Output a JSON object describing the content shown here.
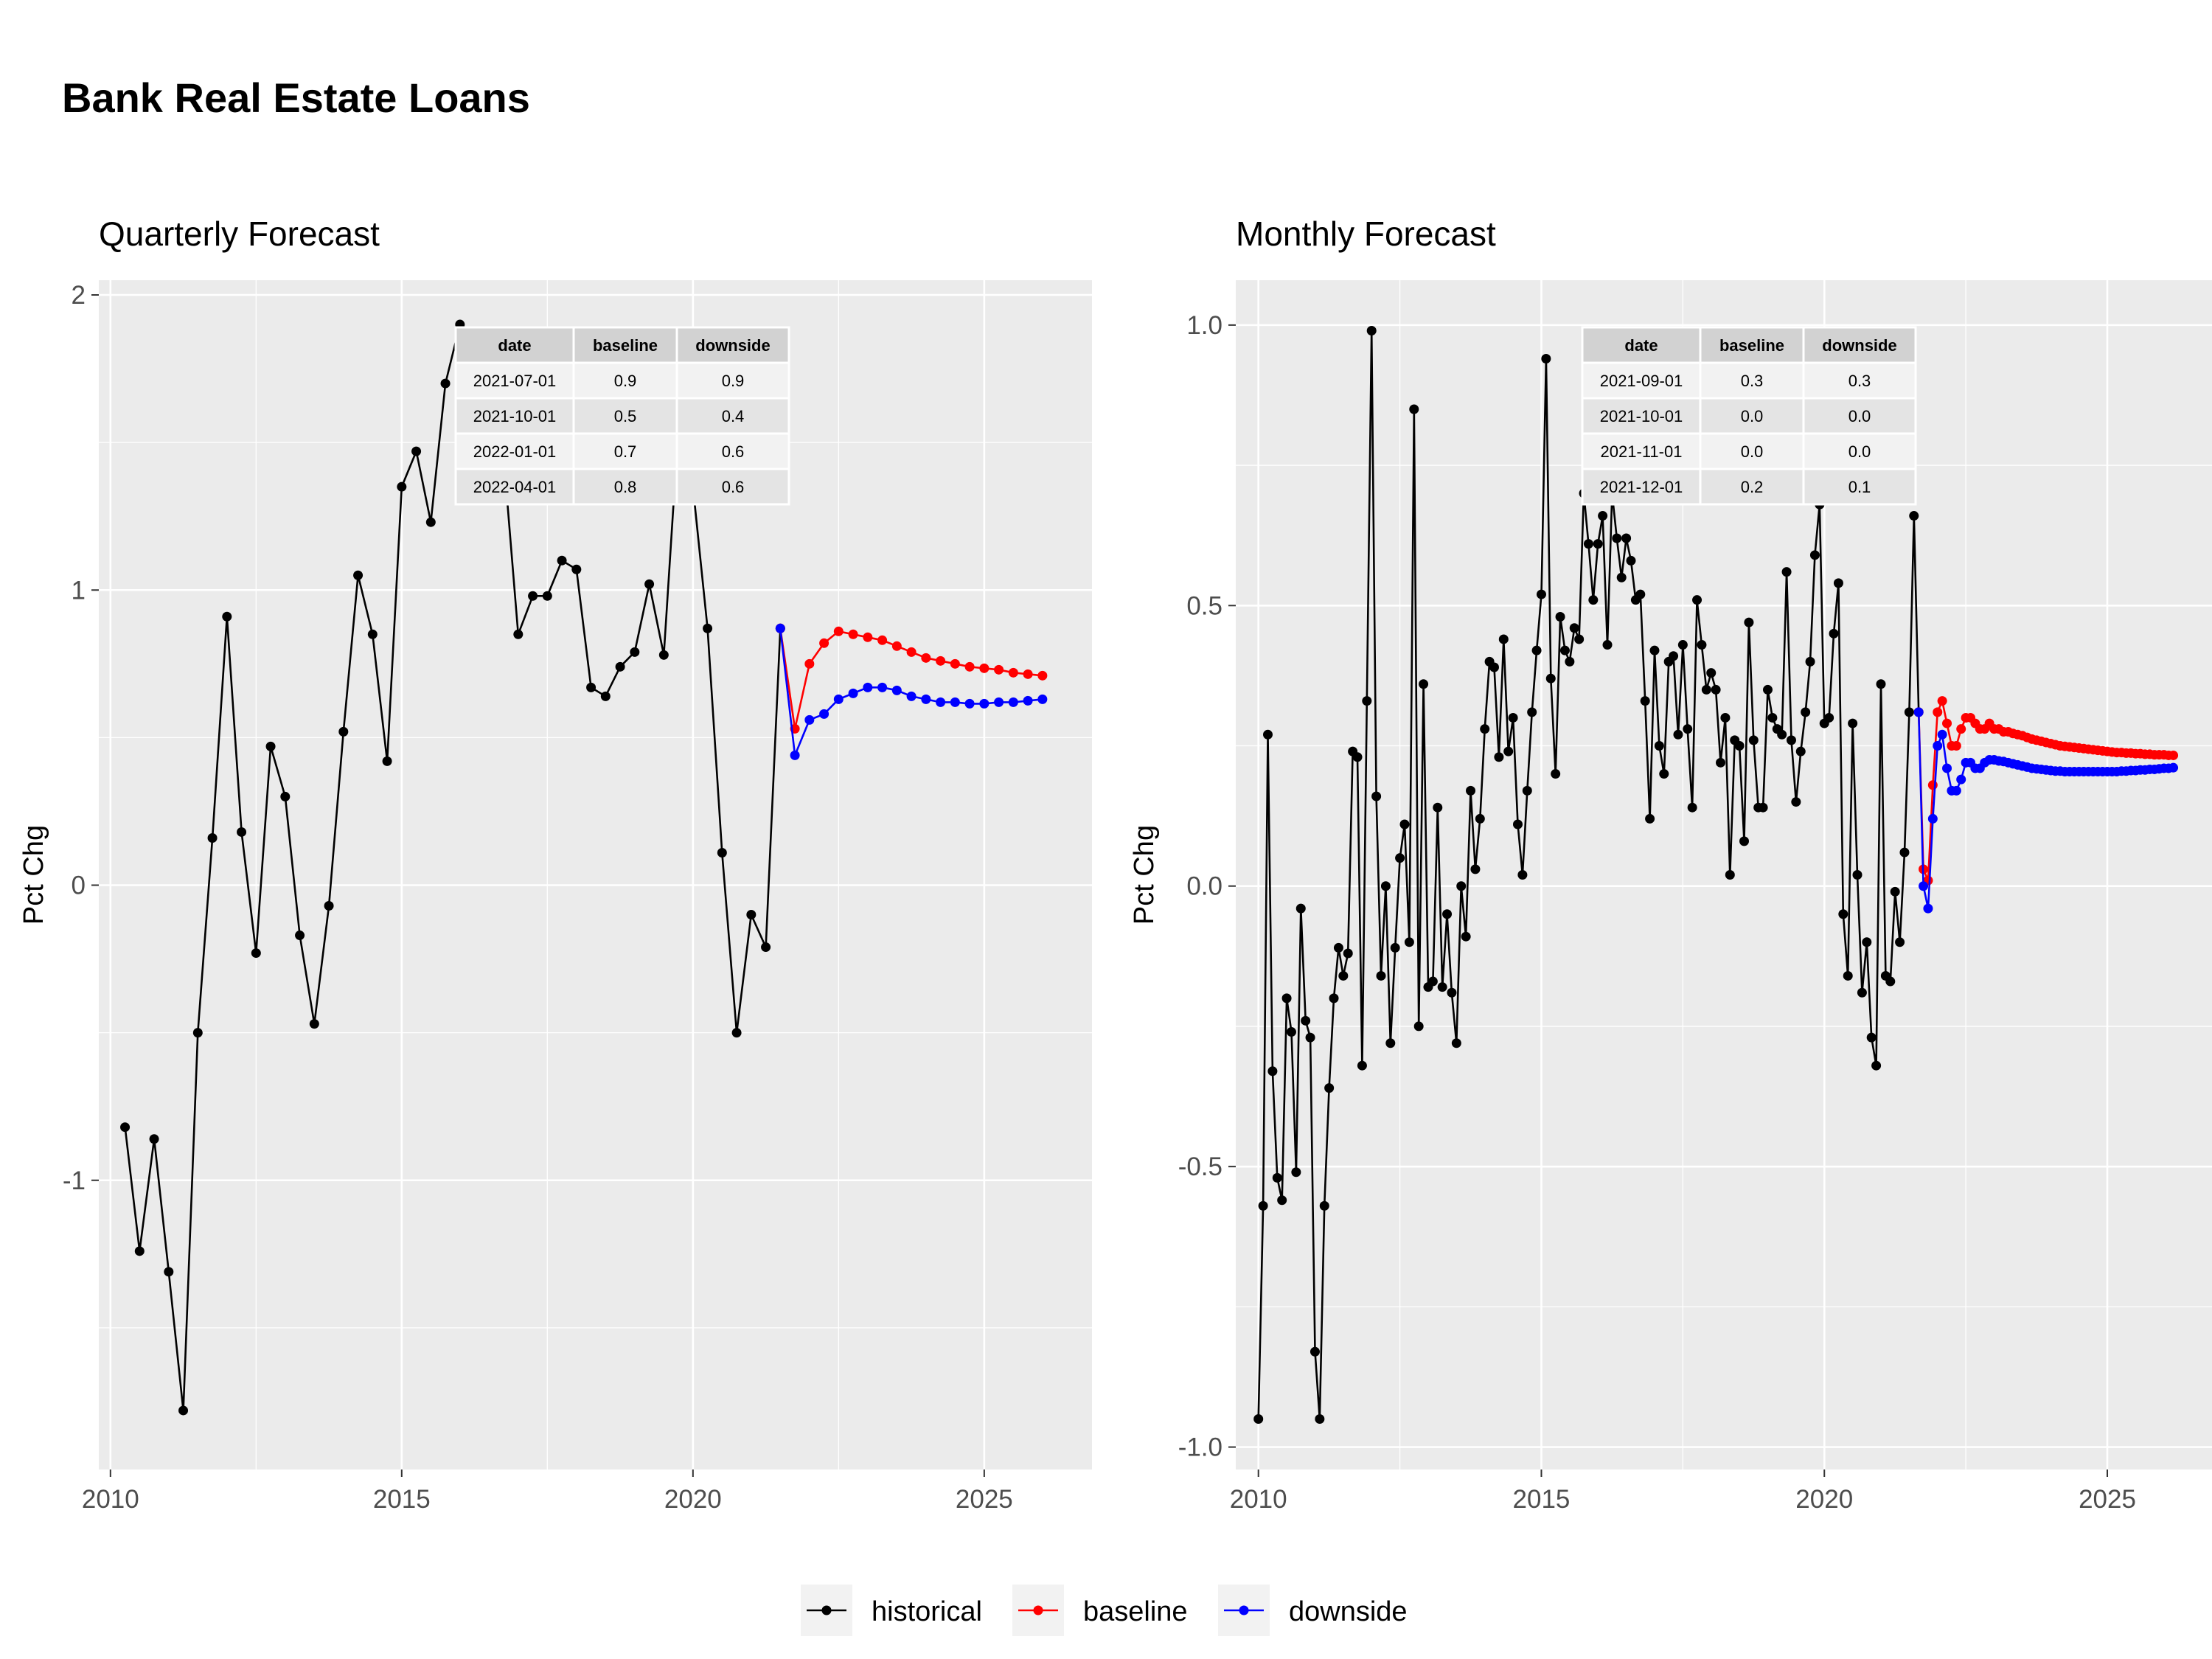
{
  "page_title": "Bank Real Estate Loans",
  "legend": [
    {
      "label": "historical",
      "color": "#000000"
    },
    {
      "label": "baseline",
      "color": "#ff0000"
    },
    {
      "label": "downside",
      "color": "#0000ff"
    }
  ],
  "chart_data": [
    {
      "type": "line",
      "title": "Quarterly Forecast",
      "xlabel": "",
      "ylabel": "Pct Chg",
      "xlim": [
        2009.8,
        2026.85
      ],
      "ylim": [
        -1.98,
        2.05
      ],
      "x_ticks": [
        2010,
        2015,
        2020,
        2025
      ],
      "x_tick_labels": [
        "2010",
        "2015",
        "2020",
        "2025"
      ],
      "y_ticks": [
        -1,
        0,
        1,
        2
      ],
      "y_tick_labels": [
        "-1",
        "0",
        "1",
        "2"
      ],
      "grid": true,
      "legend_position": "bottom",
      "series": [
        {
          "name": "historical",
          "color": "#000000",
          "x": [
            2010.25,
            2010.5,
            2010.75,
            2011.0,
            2011.25,
            2011.5,
            2011.75,
            2012.0,
            2012.25,
            2012.5,
            2012.75,
            2013.0,
            2013.25,
            2013.5,
            2013.75,
            2014.0,
            2014.25,
            2014.5,
            2014.75,
            2015.0,
            2015.25,
            2015.5,
            2015.75,
            2016.0,
            2016.25,
            2016.5,
            2016.75,
            2017.0,
            2017.25,
            2017.5,
            2017.75,
            2018.0,
            2018.25,
            2018.5,
            2018.75,
            2019.0,
            2019.25,
            2019.5,
            2019.75,
            2020.0,
            2020.25,
            2020.5,
            2020.75,
            2021.0,
            2021.25,
            2021.5
          ],
          "y": [
            -0.82,
            -1.24,
            -0.86,
            -1.31,
            -1.78,
            -0.5,
            0.16,
            0.91,
            0.18,
            -0.23,
            0.47,
            0.3,
            -0.17,
            -0.47,
            -0.07,
            0.52,
            1.05,
            0.85,
            0.42,
            1.35,
            1.47,
            1.23,
            1.7,
            1.9,
            1.75,
            1.68,
            1.45,
            0.85,
            0.98,
            0.98,
            1.1,
            1.07,
            0.67,
            0.64,
            0.74,
            0.79,
            1.02,
            0.78,
            1.55,
            1.35,
            0.87,
            0.11,
            -0.5,
            -0.1,
            -0.21,
            0.87
          ]
        },
        {
          "name": "baseline",
          "color": "#ff0000",
          "x": [
            2021.5,
            2021.75,
            2022.0,
            2022.25,
            2022.5,
            2022.75,
            2023.0,
            2023.25,
            2023.5,
            2023.75,
            2024.0,
            2024.25,
            2024.5,
            2024.75,
            2025.0,
            2025.25,
            2025.5,
            2025.75,
            2026.0
          ],
          "y": [
            0.87,
            0.53,
            0.75,
            0.82,
            0.86,
            0.85,
            0.84,
            0.83,
            0.81,
            0.79,
            0.77,
            0.76,
            0.75,
            0.74,
            0.735,
            0.73,
            0.72,
            0.715,
            0.71
          ]
        },
        {
          "name": "downside",
          "color": "#0000ff",
          "x": [
            2021.5,
            2021.75,
            2022.0,
            2022.25,
            2022.5,
            2022.75,
            2023.0,
            2023.25,
            2023.5,
            2023.75,
            2024.0,
            2024.25,
            2024.5,
            2024.75,
            2025.0,
            2025.25,
            2025.5,
            2025.75,
            2026.0
          ],
          "y": [
            0.87,
            0.44,
            0.56,
            0.58,
            0.63,
            0.65,
            0.67,
            0.67,
            0.66,
            0.64,
            0.63,
            0.62,
            0.62,
            0.615,
            0.615,
            0.62,
            0.62,
            0.625,
            0.63
          ]
        }
      ],
      "table": {
        "columns": [
          "date",
          "baseline",
          "downside"
        ],
        "rows": [
          [
            "2021-07-01",
            "0.9",
            "0.9"
          ],
          [
            "2021-10-01",
            "0.5",
            "0.4"
          ],
          [
            "2022-01-01",
            "0.7",
            "0.6"
          ],
          [
            "2022-04-01",
            "0.8",
            "0.6"
          ]
        ]
      }
    },
    {
      "type": "line",
      "title": "Monthly Forecast",
      "xlabel": "",
      "ylabel": "Pct Chg",
      "xlim": [
        2009.6,
        2026.85
      ],
      "ylim": [
        -1.04,
        1.08
      ],
      "x_ticks": [
        2010,
        2015,
        2020,
        2025
      ],
      "x_tick_labels": [
        "2010",
        "2015",
        "2020",
        "2025"
      ],
      "y_ticks": [
        -1.0,
        -0.5,
        0.0,
        0.5,
        1.0
      ],
      "y_tick_labels": [
        "-1.0",
        "-0.5",
        "0.0",
        "0.5",
        "1.0"
      ],
      "grid": true,
      "legend_position": "bottom",
      "series": [
        {
          "name": "historical",
          "color": "#000000",
          "x": [
            2010.0,
            2010.0833,
            2010.1667,
            2010.25,
            2010.3333,
            2010.4167,
            2010.5,
            2010.5833,
            2010.6667,
            2010.75,
            2010.8333,
            2010.9167,
            2011.0,
            2011.0833,
            2011.1667,
            2011.25,
            2011.3333,
            2011.4167,
            2011.5,
            2011.5833,
            2011.6667,
            2011.75,
            2011.8333,
            2011.9167,
            2012.0,
            2012.0833,
            2012.1667,
            2012.25,
            2012.3333,
            2012.4167,
            2012.5,
            2012.5833,
            2012.6667,
            2012.75,
            2012.8333,
            2012.9167,
            2013.0,
            2013.0833,
            2013.1667,
            2013.25,
            2013.3333,
            2013.4167,
            2013.5,
            2013.5833,
            2013.6667,
            2013.75,
            2013.8333,
            2013.9167,
            2014.0,
            2014.0833,
            2014.1667,
            2014.25,
            2014.3333,
            2014.4167,
            2014.5,
            2014.5833,
            2014.6667,
            2014.75,
            2014.8333,
            2014.9167,
            2015.0,
            2015.0833,
            2015.1667,
            2015.25,
            2015.3333,
            2015.4167,
            2015.5,
            2015.5833,
            2015.6667,
            2015.75,
            2015.8333,
            2015.9167,
            2016.0,
            2016.0833,
            2016.1667,
            2016.25,
            2016.3333,
            2016.4167,
            2016.5,
            2016.5833,
            2016.6667,
            2016.75,
            2016.8333,
            2016.9167,
            2017.0,
            2017.0833,
            2017.1667,
            2017.25,
            2017.3333,
            2017.4167,
            2017.5,
            2017.5833,
            2017.6667,
            2017.75,
            2017.8333,
            2017.9167,
            2018.0,
            2018.0833,
            2018.1667,
            2018.25,
            2018.3333,
            2018.4167,
            2018.5,
            2018.5833,
            2018.6667,
            2018.75,
            2018.8333,
            2018.9167,
            2019.0,
            2019.0833,
            2019.1667,
            2019.25,
            2019.3333,
            2019.4167,
            2019.5,
            2019.5833,
            2019.6667,
            2019.75,
            2019.8333,
            2019.9167,
            2020.0,
            2020.0833,
            2020.1667,
            2020.25,
            2020.3333,
            2020.4167,
            2020.5,
            2020.5833,
            2020.6667,
            2020.75,
            2020.8333,
            2020.9167,
            2021.0,
            2021.0833,
            2021.1667,
            2021.25,
            2021.3333,
            2021.4167,
            2021.5,
            2021.5833,
            2021.6667
          ],
          "y": [
            -0.95,
            -0.57,
            0.27,
            -0.33,
            -0.52,
            -0.56,
            -0.2,
            -0.26,
            -0.51,
            -0.04,
            -0.24,
            -0.27,
            -0.83,
            -0.95,
            -0.57,
            -0.36,
            -0.2,
            -0.11,
            -0.16,
            -0.12,
            0.24,
            0.23,
            -0.32,
            0.33,
            0.99,
            0.16,
            -0.16,
            0.0,
            -0.28,
            -0.11,
            0.05,
            0.11,
            -0.1,
            0.85,
            -0.25,
            0.36,
            -0.18,
            -0.17,
            0.14,
            -0.18,
            -0.05,
            -0.19,
            -0.28,
            0.0,
            -0.09,
            0.17,
            0.03,
            0.12,
            0.28,
            0.4,
            0.39,
            0.23,
            0.44,
            0.24,
            0.3,
            0.11,
            0.02,
            0.17,
            0.31,
            0.42,
            0.52,
            0.94,
            0.37,
            0.2,
            0.48,
            0.42,
            0.4,
            0.46,
            0.44,
            0.7,
            0.61,
            0.51,
            0.61,
            0.66,
            0.43,
            0.7,
            0.62,
            0.55,
            0.62,
            0.58,
            0.51,
            0.52,
            0.33,
            0.12,
            0.42,
            0.25,
            0.2,
            0.4,
            0.41,
            0.27,
            0.43,
            0.28,
            0.14,
            0.51,
            0.43,
            0.35,
            0.38,
            0.35,
            0.22,
            0.3,
            0.02,
            0.26,
            0.25,
            0.08,
            0.47,
            0.26,
            0.14,
            0.14,
            0.35,
            0.3,
            0.28,
            0.27,
            0.56,
            0.26,
            0.15,
            0.24,
            0.31,
            0.4,
            0.59,
            0.68,
            0.29,
            0.3,
            0.45,
            0.54,
            -0.05,
            -0.16,
            0.29,
            0.02,
            -0.19,
            -0.1,
            -0.27,
            -0.32,
            0.36,
            -0.16,
            -0.17,
            -0.01,
            -0.1,
            0.06,
            0.31,
            0.66,
            0.31
          ]
        },
        {
          "name": "baseline",
          "color": "#ff0000",
          "x": [
            2021.6667,
            2021.75,
            2021.8333,
            2021.9167,
            2022.0,
            2022.0833,
            2022.1667,
            2022.25,
            2022.3333,
            2022.4167,
            2022.5,
            2022.5833,
            2022.6667,
            2022.75,
            2022.8333,
            2022.9167,
            2023.0,
            2023.0833,
            2023.1667,
            2023.25,
            2023.3333,
            2023.4167,
            2023.5,
            2023.5833,
            2023.6667,
            2023.75,
            2023.8333,
            2023.9167,
            2024.0,
            2024.0833,
            2024.1667,
            2024.25,
            2024.3333,
            2024.4167,
            2024.5,
            2024.5833,
            2024.6667,
            2024.75,
            2024.8333,
            2024.9167,
            2025.0,
            2025.0833,
            2025.1667,
            2025.25,
            2025.3333,
            2025.4167,
            2025.5,
            2025.5833,
            2025.6667,
            2025.75,
            2025.8333,
            2025.9167,
            2026.0,
            2026.0833,
            2026.1667
          ],
          "y": [
            0.31,
            0.03,
            0.01,
            0.18,
            0.31,
            0.33,
            0.29,
            0.25,
            0.25,
            0.28,
            0.3,
            0.3,
            0.29,
            0.28,
            0.28,
            0.29,
            0.28,
            0.28,
            0.275,
            0.275,
            0.272,
            0.27,
            0.268,
            0.265,
            0.262,
            0.26,
            0.258,
            0.256,
            0.254,
            0.252,
            0.25,
            0.249,
            0.248,
            0.247,
            0.246,
            0.245,
            0.244,
            0.243,
            0.242,
            0.241,
            0.24,
            0.239,
            0.238,
            0.238,
            0.237,
            0.237,
            0.236,
            0.236,
            0.235,
            0.235,
            0.234,
            0.234,
            0.234,
            0.233,
            0.233
          ]
        },
        {
          "name": "downside",
          "color": "#0000ff",
          "x": [
            2021.6667,
            2021.75,
            2021.8333,
            2021.9167,
            2022.0,
            2022.0833,
            2022.1667,
            2022.25,
            2022.3333,
            2022.4167,
            2022.5,
            2022.5833,
            2022.6667,
            2022.75,
            2022.8333,
            2022.9167,
            2023.0,
            2023.0833,
            2023.1667,
            2023.25,
            2023.3333,
            2023.4167,
            2023.5,
            2023.5833,
            2023.6667,
            2023.75,
            2023.8333,
            2023.9167,
            2024.0,
            2024.0833,
            2024.1667,
            2024.25,
            2024.3333,
            2024.4167,
            2024.5,
            2024.5833,
            2024.6667,
            2024.75,
            2024.8333,
            2024.9167,
            2025.0,
            2025.0833,
            2025.1667,
            2025.25,
            2025.3333,
            2025.4167,
            2025.5,
            2025.5833,
            2025.6667,
            2025.75,
            2025.8333,
            2025.9167,
            2026.0,
            2026.0833,
            2026.1667
          ],
          "y": [
            0.31,
            0.0,
            -0.04,
            0.12,
            0.25,
            0.27,
            0.21,
            0.17,
            0.17,
            0.19,
            0.22,
            0.22,
            0.21,
            0.21,
            0.22,
            0.225,
            0.225,
            0.223,
            0.222,
            0.22,
            0.218,
            0.216,
            0.214,
            0.212,
            0.21,
            0.209,
            0.208,
            0.207,
            0.206,
            0.205,
            0.205,
            0.204,
            0.204,
            0.204,
            0.204,
            0.204,
            0.204,
            0.204,
            0.204,
            0.204,
            0.204,
            0.204,
            0.204,
            0.205,
            0.205,
            0.206,
            0.206,
            0.207,
            0.207,
            0.208,
            0.208,
            0.209,
            0.21,
            0.21,
            0.211
          ]
        }
      ],
      "table": {
        "columns": [
          "date",
          "baseline",
          "downside"
        ],
        "rows": [
          [
            "2021-09-01",
            "0.3",
            "0.3"
          ],
          [
            "2021-10-01",
            "0.0",
            "0.0"
          ],
          [
            "2021-11-01",
            "0.0",
            "0.0"
          ],
          [
            "2021-12-01",
            "0.2",
            "0.1"
          ]
        ]
      }
    }
  ]
}
